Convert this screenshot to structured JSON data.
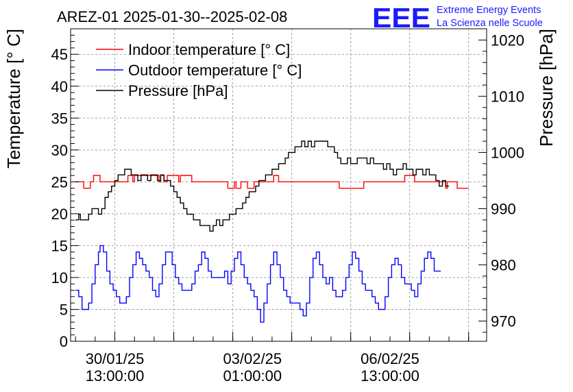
{
  "chart_data": {
    "type": "line",
    "title": "AREZ-01 2025-01-30--2025-02-08",
    "ylabel": "Temperature [° C]",
    "y2label": "Pressure [hPa]",
    "ylim": [
      0,
      49
    ],
    "y2lim": [
      966.4,
      1022
    ],
    "x_tick_labels": [
      {
        "date": "30/01/25",
        "time": "13:00:00",
        "hours": 24
      },
      {
        "date": "03/02/25",
        "time": "01:00:00",
        "hours": 108
      },
      {
        "date": "06/02/25",
        "time": "13:00:00",
        "hours": 192
      }
    ],
    "xlim_hours": [
      -3,
      251
    ],
    "x_unit": "hours since 2025-01-29 13:00",
    "y_ticks": [
      0,
      5,
      10,
      15,
      20,
      25,
      30,
      35,
      40,
      45
    ],
    "y2_ticks": [
      970,
      980,
      990,
      1000,
      1010,
      1020
    ],
    "grid": true,
    "legend_position": "top-left",
    "series": [
      {
        "name": "Indoor temperature [° C]",
        "axis": "left",
        "color": "#ff0000",
        "points": [
          [
            0,
            25
          ],
          [
            4,
            25
          ],
          [
            5,
            24
          ],
          [
            8,
            24
          ],
          [
            9,
            25
          ],
          [
            10,
            25
          ],
          [
            11,
            26
          ],
          [
            14,
            26
          ],
          [
            15,
            25
          ],
          [
            30,
            25
          ],
          [
            32,
            26
          ],
          [
            34,
            26
          ],
          [
            35,
            25
          ],
          [
            36,
            26
          ],
          [
            50,
            26
          ],
          [
            51,
            25
          ],
          [
            52,
            26
          ],
          [
            54,
            25
          ],
          [
            56,
            26
          ],
          [
            62,
            26
          ],
          [
            63,
            25
          ],
          [
            64,
            26
          ],
          [
            70,
            26
          ],
          [
            71,
            25
          ],
          [
            92,
            25
          ],
          [
            93,
            24
          ],
          [
            96,
            24
          ],
          [
            97,
            25
          ],
          [
            98,
            24
          ],
          [
            100,
            24
          ],
          [
            101,
            25
          ],
          [
            104,
            25
          ],
          [
            105,
            24
          ],
          [
            108,
            24
          ],
          [
            109,
            25
          ],
          [
            120,
            25
          ],
          [
            121,
            26
          ],
          [
            123,
            26
          ],
          [
            124,
            25
          ],
          [
            160,
            25
          ],
          [
            161,
            24
          ],
          [
            175,
            24
          ],
          [
            176,
            25
          ],
          [
            200,
            25
          ],
          [
            201,
            26
          ],
          [
            206,
            26
          ],
          [
            207,
            25
          ],
          [
            225,
            25
          ],
          [
            226,
            24
          ],
          [
            227,
            25
          ],
          [
            232,
            25
          ],
          [
            233,
            24
          ],
          [
            240,
            24
          ]
        ]
      },
      {
        "name": "Outdoor temperature [° C]",
        "axis": "left",
        "color": "#0000ff",
        "points": [
          [
            0,
            8
          ],
          [
            2,
            7
          ],
          [
            4,
            5
          ],
          [
            6,
            5
          ],
          [
            8,
            6
          ],
          [
            10,
            9
          ],
          [
            12,
            12
          ],
          [
            14,
            14
          ],
          [
            15,
            15
          ],
          [
            17,
            14
          ],
          [
            19,
            11
          ],
          [
            21,
            9
          ],
          [
            23,
            8
          ],
          [
            25,
            7
          ],
          [
            27,
            6
          ],
          [
            29,
            6
          ],
          [
            31,
            7
          ],
          [
            33,
            10
          ],
          [
            35,
            12
          ],
          [
            37,
            14
          ],
          [
            39,
            13
          ],
          [
            41,
            12
          ],
          [
            43,
            11
          ],
          [
            45,
            10
          ],
          [
            47,
            8
          ],
          [
            49,
            7
          ],
          [
            51,
            9
          ],
          [
            53,
            12
          ],
          [
            55,
            14
          ],
          [
            57,
            14
          ],
          [
            59,
            12
          ],
          [
            61,
            10
          ],
          [
            63,
            9
          ],
          [
            65,
            8
          ],
          [
            67,
            8
          ],
          [
            69,
            8
          ],
          [
            71,
            9
          ],
          [
            73,
            11
          ],
          [
            75,
            12
          ],
          [
            77,
            14
          ],
          [
            79,
            13
          ],
          [
            81,
            11
          ],
          [
            83,
            10
          ],
          [
            85,
            10
          ],
          [
            87,
            10
          ],
          [
            89,
            10
          ],
          [
            91,
            11
          ],
          [
            93,
            9
          ],
          [
            95,
            11
          ],
          [
            97,
            13
          ],
          [
            99,
            14
          ],
          [
            101,
            12
          ],
          [
            103,
            10
          ],
          [
            105,
            9
          ],
          [
            107,
            8
          ],
          [
            109,
            7
          ],
          [
            111,
            5
          ],
          [
            113,
            3
          ],
          [
            115,
            6
          ],
          [
            117,
            9
          ],
          [
            119,
            12
          ],
          [
            121,
            14
          ],
          [
            123,
            12
          ],
          [
            125,
            10
          ],
          [
            127,
            8
          ],
          [
            129,
            7
          ],
          [
            131,
            6
          ],
          [
            133,
            6
          ],
          [
            135,
            6
          ],
          [
            137,
            5
          ],
          [
            139,
            4
          ],
          [
            141,
            6
          ],
          [
            143,
            10
          ],
          [
            145,
            13
          ],
          [
            147,
            14
          ],
          [
            149,
            12
          ],
          [
            151,
            10
          ],
          [
            153,
            9
          ],
          [
            155,
            10
          ],
          [
            157,
            8
          ],
          [
            159,
            7
          ],
          [
            161,
            7
          ],
          [
            163,
            8
          ],
          [
            165,
            10
          ],
          [
            167,
            12
          ],
          [
            169,
            14
          ],
          [
            171,
            13
          ],
          [
            173,
            11
          ],
          [
            175,
            9
          ],
          [
            177,
            8
          ],
          [
            179,
            8
          ],
          [
            181,
            7
          ],
          [
            183,
            6
          ],
          [
            185,
            5
          ],
          [
            187,
            5
          ],
          [
            189,
            7
          ],
          [
            191,
            10
          ],
          [
            193,
            12
          ],
          [
            195,
            13
          ],
          [
            197,
            12
          ],
          [
            199,
            10
          ],
          [
            201,
            9
          ],
          [
            203,
            9
          ],
          [
            205,
            8
          ],
          [
            207,
            7
          ],
          [
            209,
            9
          ],
          [
            211,
            11
          ],
          [
            213,
            13
          ],
          [
            215,
            14
          ],
          [
            217,
            13
          ],
          [
            219,
            11
          ],
          [
            221,
            11
          ],
          [
            223,
            11
          ]
        ]
      },
      {
        "name": "Pressure [hPa]",
        "axis": "right",
        "color": "#000000",
        "points": [
          [
            0,
            988
          ],
          [
            2,
            989
          ],
          [
            3,
            988
          ],
          [
            6,
            988
          ],
          [
            8,
            989
          ],
          [
            10,
            990
          ],
          [
            12,
            990
          ],
          [
            14,
            989
          ],
          [
            16,
            990
          ],
          [
            18,
            992
          ],
          [
            20,
            993
          ],
          [
            22,
            994
          ],
          [
            24,
            995
          ],
          [
            26,
            996
          ],
          [
            28,
            996
          ],
          [
            30,
            997
          ],
          [
            32,
            997
          ],
          [
            34,
            996
          ],
          [
            36,
            996
          ],
          [
            38,
            995
          ],
          [
            40,
            996
          ],
          [
            42,
            996
          ],
          [
            44,
            995
          ],
          [
            46,
            996
          ],
          [
            48,
            996
          ],
          [
            50,
            995
          ],
          [
            52,
            996
          ],
          [
            54,
            995
          ],
          [
            56,
            995
          ],
          [
            58,
            994
          ],
          [
            60,
            993
          ],
          [
            62,
            992
          ],
          [
            64,
            991
          ],
          [
            66,
            990
          ],
          [
            68,
            989
          ],
          [
            70,
            989
          ],
          [
            72,
            988
          ],
          [
            74,
            988
          ],
          [
            76,
            987
          ],
          [
            78,
            987
          ],
          [
            80,
            987
          ],
          [
            82,
            986
          ],
          [
            84,
            987
          ],
          [
            86,
            988
          ],
          [
            88,
            987
          ],
          [
            90,
            988
          ],
          [
            92,
            988
          ],
          [
            94,
            989
          ],
          [
            96,
            989
          ],
          [
            98,
            990
          ],
          [
            100,
            990
          ],
          [
            102,
            991
          ],
          [
            104,
            992
          ],
          [
            106,
            993
          ],
          [
            108,
            993
          ],
          [
            110,
            994
          ],
          [
            112,
            995
          ],
          [
            114,
            995
          ],
          [
            116,
            996
          ],
          [
            118,
            996
          ],
          [
            120,
            997
          ],
          [
            122,
            997
          ],
          [
            124,
            998
          ],
          [
            126,
            998
          ],
          [
            128,
            999
          ],
          [
            130,
            1000
          ],
          [
            132,
            1000
          ],
          [
            134,
            1001
          ],
          [
            136,
            1001
          ],
          [
            138,
            1002
          ],
          [
            140,
            1001
          ],
          [
            142,
            1002
          ],
          [
            144,
            1001
          ],
          [
            146,
            1002
          ],
          [
            148,
            1002
          ],
          [
            150,
            1002
          ],
          [
            152,
            1002
          ],
          [
            154,
            1001
          ],
          [
            156,
            1001
          ],
          [
            158,
            1000
          ],
          [
            160,
            999
          ],
          [
            162,
            998
          ],
          [
            164,
            998
          ],
          [
            166,
            999
          ],
          [
            168,
            998
          ],
          [
            170,
            998
          ],
          [
            172,
            999
          ],
          [
            174,
            999
          ],
          [
            176,
            999
          ],
          [
            178,
            998
          ],
          [
            180,
            999
          ],
          [
            182,
            998
          ],
          [
            184,
            998
          ],
          [
            186,
            998
          ],
          [
            188,
            997
          ],
          [
            190,
            998
          ],
          [
            192,
            997
          ],
          [
            194,
            996
          ],
          [
            196,
            997
          ],
          [
            198,
            997
          ],
          [
            200,
            998
          ],
          [
            202,
            997
          ],
          [
            204,
            997
          ],
          [
            206,
            996
          ],
          [
            208,
            997
          ],
          [
            210,
            997
          ],
          [
            212,
            996
          ],
          [
            214,
            997
          ],
          [
            216,
            996
          ],
          [
            218,
            996
          ],
          [
            220,
            995
          ],
          [
            222,
            994
          ],
          [
            224,
            995
          ],
          [
            226,
            994
          ],
          [
            228,
            994
          ]
        ]
      }
    ]
  },
  "logo": {
    "mark": "EEE",
    "line1": "Extreme Energy Events",
    "line2": "La Scienza nelle Scuole"
  },
  "colors": {
    "indoor": "#ff0000",
    "outdoor": "#0000ff",
    "pressure": "#000000",
    "brand": "#1a1aff",
    "grid": "#a0a0a0"
  }
}
